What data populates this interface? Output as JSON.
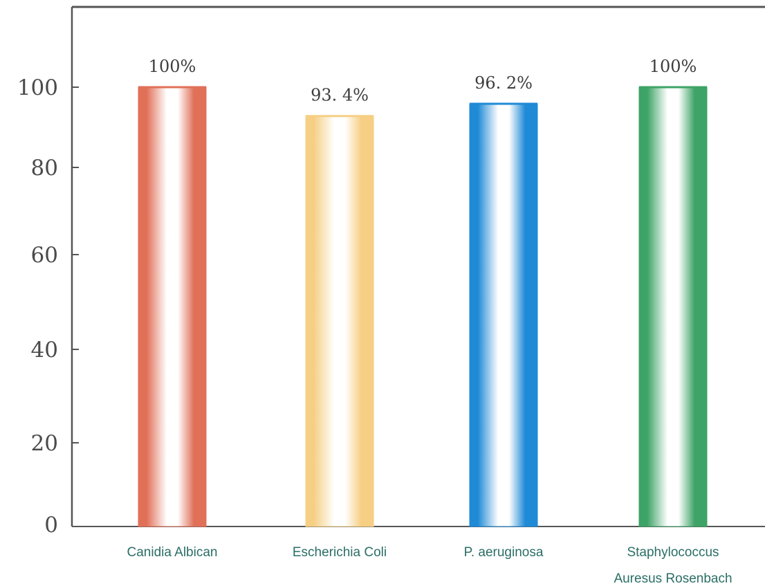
{
  "chart_data": {
    "type": "bar",
    "categories": [
      [
        "Canidia Albican"
      ],
      [
        "Escherichia Coli"
      ],
      [
        "P. aeruginosa"
      ],
      [
        "Staphylococcus",
        "Auresus Rosenbach"
      ]
    ],
    "values": [
      100,
      93.4,
      96.2,
      100
    ],
    "data_labels": [
      "100%",
      "93. 4%",
      "96. 2%",
      "100%"
    ],
    "bar_colors": [
      "#e07058",
      "#f6cf84",
      "#1f8ad6",
      "#3da366"
    ],
    "y_ticks": [
      0,
      20,
      40,
      60,
      80,
      100
    ],
    "y_tick_labels": [
      "0",
      "20",
      "40",
      "60",
      "80",
      "100"
    ],
    "ylim": [
      0,
      117
    ],
    "grid": false,
    "title": "",
    "xlabel": "",
    "ylabel": ""
  }
}
